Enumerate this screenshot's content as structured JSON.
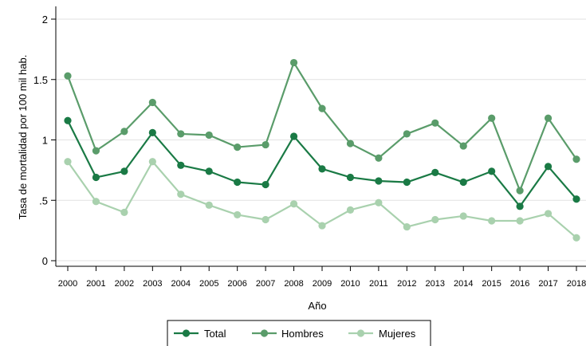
{
  "chart_data": {
    "type": "line",
    "xlabel": "Año",
    "ylabel": "Tasa de mortalidad por 100 mil hab.",
    "x": [
      "2000",
      "2001",
      "2002",
      "2003",
      "2004",
      "2005",
      "2006",
      "2007",
      "2008",
      "2009",
      "2010",
      "2011",
      "2012",
      "2013",
      "2014",
      "2015",
      "2016",
      "2017",
      "2018"
    ],
    "ylim": [
      0,
      2
    ],
    "yticks": [
      0,
      0.5,
      1,
      1.5,
      2
    ],
    "ytick_labels": [
      "0",
      ".5",
      "1",
      "1.5",
      "2"
    ],
    "grid": true,
    "legend_position": "bottom",
    "series": [
      {
        "name": "Total",
        "color": "#1a7a45",
        "values": [
          1.16,
          0.69,
          0.74,
          1.06,
          0.79,
          0.74,
          0.65,
          0.63,
          1.03,
          0.76,
          0.69,
          0.66,
          0.65,
          0.73,
          0.65,
          0.74,
          0.45,
          0.78,
          0.51
        ]
      },
      {
        "name": "Hombres",
        "color": "#5a9c6a",
        "values": [
          1.53,
          0.91,
          1.07,
          1.31,
          1.05,
          1.04,
          0.94,
          0.96,
          1.64,
          1.26,
          0.97,
          0.85,
          1.05,
          1.14,
          0.95,
          1.18,
          0.58,
          1.18,
          0.84
        ]
      },
      {
        "name": "Mujeres",
        "color": "#a9d1ae",
        "values": [
          0.82,
          0.49,
          0.4,
          0.82,
          0.55,
          0.46,
          0.38,
          0.34,
          0.47,
          0.29,
          0.42,
          0.48,
          0.28,
          0.34,
          0.37,
          0.33,
          0.33,
          0.39,
          0.19
        ]
      }
    ]
  }
}
